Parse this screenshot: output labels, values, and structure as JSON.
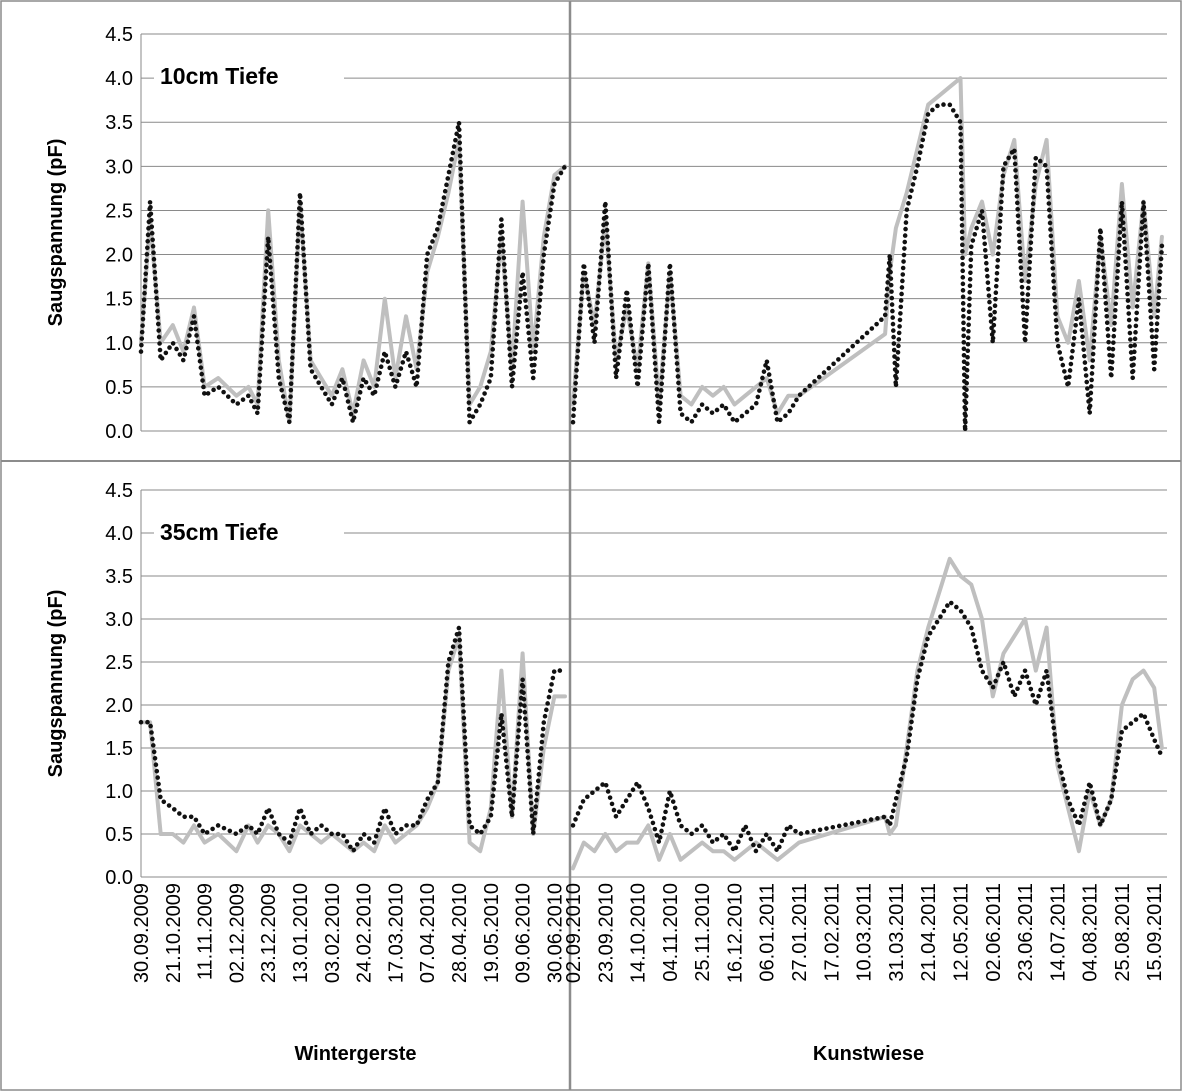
{
  "chart_data": {
    "type": "line",
    "ylabel": "Saugspannung (pF)",
    "ylim": [
      0,
      4.5
    ],
    "yticks": [
      "0.0",
      "0.5",
      "1.0",
      "1.5",
      "2.0",
      "2.5",
      "3.0",
      "3.5",
      "4.0",
      "4.5"
    ],
    "grid": true,
    "xlabels": {
      "left": "Wintergerste",
      "right": "Kunstwiese"
    },
    "x_ticks": {
      "left": [
        "30.09.2009",
        "21.10.2009",
        "11.11.2009",
        "02.12.2009",
        "23.12.2009",
        "13.01.2010",
        "03.02.2010",
        "24.02.2010",
        "17.03.2010",
        "07.04.2010",
        "28.04.2010",
        "19.05.2010",
        "09.06.2010",
        "30.06.2010"
      ],
      "right": [
        "02.09.2010",
        "23.09.2010",
        "14.10.2010",
        "04.11.2010",
        "25.11.2010",
        "16.12.2010",
        "06.01.2011",
        "27.01.2011",
        "17.02.2011",
        "10.03.2011",
        "31.03.2011",
        "21.04.2011",
        "12.05.2011",
        "02.06.2011",
        "23.06.2011",
        "14.07.2011",
        "04.08.2011",
        "25.08.2011",
        "15.09.2011"
      ]
    },
    "series_styles": [
      {
        "style": "solid",
        "color": "#bfbfbf"
      },
      {
        "style": "dotted",
        "color": "#111111"
      }
    ],
    "panels": [
      {
        "title": "10cm Tiefe",
        "left": {
          "x": [
            "30.09.2009",
            "06.10.2009",
            "13.10.2009",
            "21.10.2009",
            "28.10.2009",
            "04.11.2009",
            "11.11.2009",
            "20.11.2009",
            "02.12.2009",
            "10.12.2009",
            "16.12.2009",
            "23.12.2009",
            "30.12.2009",
            "06.01.2010",
            "13.01.2010",
            "20.01.2010",
            "27.01.2010",
            "03.02.2010",
            "10.02.2010",
            "17.02.2010",
            "24.02.2010",
            "03.03.2010",
            "10.03.2010",
            "17.03.2010",
            "24.03.2010",
            "31.03.2010",
            "07.04.2010",
            "14.04.2010",
            "21.04.2010",
            "28.04.2010",
            "05.05.2010",
            "12.05.2010",
            "19.05.2010",
            "26.05.2010",
            "02.06.2010",
            "09.06.2010",
            "16.06.2010",
            "23.06.2010",
            "30.06.2010",
            "07.07.2010"
          ],
          "series": [
            {
              "values": [
                1.0,
                2.4,
                1.0,
                1.2,
                0.9,
                1.4,
                0.5,
                0.6,
                0.4,
                0.5,
                0.3,
                2.5,
                0.8,
                0.1,
                2.6,
                0.8,
                0.6,
                0.4,
                0.7,
                0.2,
                0.8,
                0.5,
                1.5,
                0.6,
                1.3,
                0.7,
                1.8,
                2.2,
                2.7,
                3.3,
                0.3,
                0.5,
                0.9,
                2.2,
                0.7,
                2.6,
                0.9,
                2.2,
                2.9,
                3.0
              ]
            },
            {
              "values": [
                0.9,
                2.6,
                0.8,
                1.0,
                0.8,
                1.3,
                0.4,
                0.5,
                0.3,
                0.4,
                0.2,
                2.2,
                0.6,
                0.1,
                2.7,
                0.7,
                0.5,
                0.3,
                0.6,
                0.1,
                0.6,
                0.4,
                0.9,
                0.5,
                0.9,
                0.5,
                2.0,
                2.3,
                2.9,
                3.5,
                0.1,
                0.3,
                0.6,
                2.4,
                0.5,
                1.8,
                0.6,
                2.0,
                2.8,
                3.0
              ]
            }
          ]
        },
        "right": {
          "x": [
            "02.09.2010",
            "09.09.2010",
            "16.09.2010",
            "23.09.2010",
            "30.09.2010",
            "07.10.2010",
            "14.10.2010",
            "21.10.2010",
            "28.10.2010",
            "04.11.2010",
            "11.11.2010",
            "18.11.2010",
            "25.11.2010",
            "02.12.2010",
            "09.12.2010",
            "16.12.2010",
            "23.12.2010",
            "30.12.2010",
            "06.01.2011",
            "13.01.2011",
            "20.01.2011",
            "27.01.2011",
            "24.03.2011",
            "27.03.2011",
            "31.03.2011",
            "07.04.2011",
            "14.04.2011",
            "21.04.2011",
            "28.04.2011",
            "05.05.2011",
            "12.05.2011",
            "15.05.2011",
            "19.05.2011",
            "26.05.2011",
            "02.06.2011",
            "09.06.2011",
            "16.06.2011",
            "23.06.2011",
            "30.06.2011",
            "07.07.2011",
            "14.07.2011",
            "21.07.2011",
            "28.07.2011",
            "04.08.2011",
            "11.08.2011",
            "18.08.2011",
            "25.08.2011",
            "01.09.2011",
            "08.09.2011",
            "15.09.2011",
            "20.09.2011"
          ],
          "series": [
            {
              "values": [
                0.3,
                1.8,
                1.2,
                2.4,
                0.8,
                1.4,
                0.7,
                1.9,
                0.3,
                1.8,
                0.4,
                0.3,
                0.5,
                0.4,
                0.5,
                0.3,
                0.4,
                0.5,
                0.6,
                0.2,
                0.4,
                0.4,
                1.1,
                1.8,
                2.3,
                2.7,
                3.2,
                3.7,
                3.8,
                3.9,
                4.0,
                2.0,
                2.3,
                2.6,
                2.0,
                2.9,
                3.3,
                1.7,
                2.8,
                3.3,
                1.3,
                1.0,
                1.7,
                0.8,
                2.2,
                1.2,
                2.8,
                1.4,
                2.6,
                1.3,
                2.2
              ]
            },
            {
              "values": [
                0.1,
                1.9,
                1.0,
                2.6,
                0.6,
                1.6,
                0.5,
                1.9,
                0.1,
                1.9,
                0.2,
                0.1,
                0.3,
                0.2,
                0.3,
                0.1,
                0.2,
                0.3,
                0.8,
                0.1,
                0.2,
                0.4,
                1.3,
                2.0,
                0.5,
                2.5,
                3.0,
                3.6,
                3.7,
                3.7,
                3.5,
                0.0,
                2.1,
                2.5,
                1.0,
                3.0,
                3.2,
                1.0,
                3.1,
                3.0,
                1.0,
                0.5,
                1.5,
                0.2,
                2.3,
                0.6,
                2.6,
                0.6,
                2.6,
                0.7,
                2.1
              ]
            }
          ]
        }
      },
      {
        "title": "35cm Tiefe",
        "left": {
          "x": [
            "30.09.2009",
            "06.10.2009",
            "13.10.2009",
            "21.10.2009",
            "28.10.2009",
            "04.11.2009",
            "11.11.2009",
            "20.11.2009",
            "02.12.2009",
            "10.12.2009",
            "16.12.2009",
            "23.12.2009",
            "30.12.2009",
            "06.01.2010",
            "13.01.2010",
            "20.01.2010",
            "27.01.2010",
            "03.02.2010",
            "10.02.2010",
            "17.02.2010",
            "24.02.2010",
            "03.03.2010",
            "10.03.2010",
            "17.03.2010",
            "24.03.2010",
            "31.03.2010",
            "07.04.2010",
            "14.04.2010",
            "21.04.2010",
            "28.04.2010",
            "05.05.2010",
            "12.05.2010",
            "19.05.2010",
            "26.05.2010",
            "02.06.2010",
            "09.06.2010",
            "16.06.2010",
            "23.06.2010",
            "30.06.2010",
            "07.07.2010"
          ],
          "series": [
            {
              "values": [
                1.8,
                1.8,
                0.5,
                0.5,
                0.4,
                0.6,
                0.4,
                0.5,
                0.3,
                0.6,
                0.4,
                0.6,
                0.5,
                0.3,
                0.6,
                0.5,
                0.4,
                0.5,
                0.4,
                0.3,
                0.4,
                0.3,
                0.6,
                0.4,
                0.5,
                0.6,
                0.8,
                1.1,
                2.4,
                2.8,
                0.4,
                0.3,
                0.8,
                2.4,
                0.7,
                2.6,
                0.5,
                1.5,
                2.1,
                2.1
              ]
            },
            {
              "values": [
                1.8,
                1.8,
                0.9,
                0.8,
                0.7,
                0.7,
                0.5,
                0.6,
                0.5,
                0.6,
                0.5,
                0.8,
                0.5,
                0.4,
                0.8,
                0.5,
                0.6,
                0.5,
                0.5,
                0.3,
                0.5,
                0.4,
                0.8,
                0.5,
                0.6,
                0.6,
                0.9,
                1.1,
                2.5,
                2.9,
                0.6,
                0.5,
                0.7,
                1.9,
                0.7,
                2.3,
                0.5,
                1.8,
                2.4,
                2.4
              ]
            }
          ]
        },
        "right": {
          "x": [
            "02.09.2010",
            "09.09.2010",
            "16.09.2010",
            "23.09.2010",
            "30.09.2010",
            "07.10.2010",
            "14.10.2010",
            "21.10.2010",
            "28.10.2010",
            "04.11.2010",
            "11.11.2010",
            "18.11.2010",
            "25.11.2010",
            "02.12.2010",
            "09.12.2010",
            "16.12.2010",
            "23.12.2010",
            "30.12.2010",
            "06.01.2011",
            "13.01.2011",
            "20.01.2011",
            "27.01.2011",
            "24.03.2011",
            "27.03.2011",
            "31.03.2011",
            "07.04.2011",
            "14.04.2011",
            "21.04.2011",
            "28.04.2011",
            "05.05.2011",
            "12.05.2011",
            "19.05.2011",
            "26.05.2011",
            "02.06.2011",
            "09.06.2011",
            "16.06.2011",
            "23.06.2011",
            "30.06.2011",
            "07.07.2011",
            "14.07.2011",
            "21.07.2011",
            "28.07.2011",
            "04.08.2011",
            "11.08.2011",
            "18.08.2011",
            "25.08.2011",
            "01.09.2011",
            "08.09.2011",
            "15.09.2011",
            "20.09.2011"
          ],
          "series": [
            {
              "values": [
                0.1,
                0.4,
                0.3,
                0.5,
                0.3,
                0.4,
                0.4,
                0.6,
                0.2,
                0.5,
                0.2,
                0.3,
                0.4,
                0.3,
                0.3,
                0.2,
                0.3,
                0.4,
                0.3,
                0.2,
                0.3,
                0.4,
                0.7,
                0.5,
                0.6,
                1.5,
                2.4,
                2.9,
                3.3,
                3.7,
                3.5,
                3.4,
                3.0,
                2.1,
                2.6,
                2.8,
                3.0,
                2.4,
                2.9,
                1.3,
                0.8,
                0.3,
                1.0,
                0.6,
                0.9,
                2.0,
                2.3,
                2.4,
                2.2,
                1.5
              ]
            },
            {
              "values": [
                0.6,
                0.9,
                1.0,
                1.1,
                0.7,
                0.9,
                1.1,
                0.8,
                0.4,
                1.0,
                0.6,
                0.5,
                0.6,
                0.4,
                0.5,
                0.3,
                0.6,
                0.3,
                0.5,
                0.3,
                0.6,
                0.5,
                0.7,
                0.6,
                0.9,
                1.4,
                2.3,
                2.8,
                3.0,
                3.2,
                3.1,
                2.9,
                2.4,
                2.2,
                2.5,
                2.1,
                2.4,
                2.0,
                2.4,
                1.4,
                0.9,
                0.6,
                1.1,
                0.6,
                0.9,
                1.7,
                1.8,
                1.9,
                1.6,
                1.4
              ]
            }
          ]
        }
      }
    ]
  }
}
